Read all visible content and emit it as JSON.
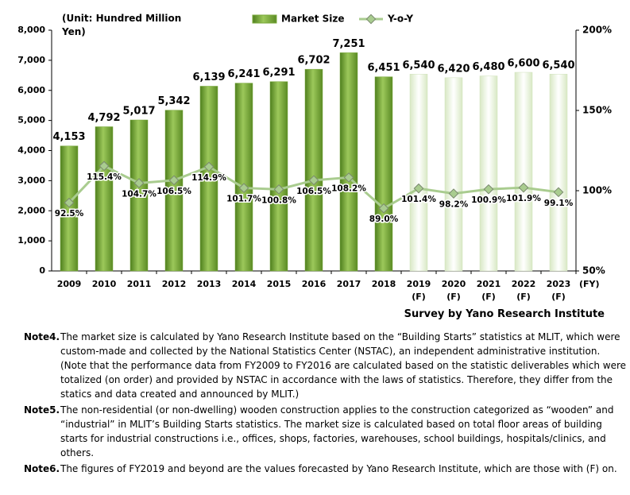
{
  "chart_data": {
    "type": "bar",
    "unit_label": "(Unit: Hundred Million Yen)",
    "x_unit": "(FY)",
    "source": "Survey by Yano Research Institute",
    "categories": [
      "2009",
      "2010",
      "2011",
      "2012",
      "2013",
      "2014",
      "2015",
      "2016",
      "2017",
      "2018",
      "2019 (F)",
      "2020 (F)",
      "2021 (F)",
      "2022 (F)",
      "2023 (F)"
    ],
    "forecast": [
      false,
      false,
      false,
      false,
      false,
      false,
      false,
      false,
      false,
      false,
      true,
      true,
      true,
      true,
      true
    ],
    "series": [
      {
        "name": "Market Size",
        "type": "bar",
        "color": "#78a83a",
        "values": [
          4153,
          4792,
          5017,
          5342,
          6139,
          6241,
          6291,
          6702,
          7251,
          6451,
          6540,
          6420,
          6480,
          6600,
          6540
        ],
        "value_labels": [
          "4,153",
          "4,792",
          "5,017",
          "5,342",
          "6,139",
          "6,241",
          "6,291",
          "6,702",
          "7,251",
          "6,451",
          "6,540",
          "6,420",
          "6,480",
          "6,600",
          "6,540"
        ]
      },
      {
        "name": "Y-o-Y",
        "type": "line",
        "axis": "y2",
        "color": "#a9cc8f",
        "values": [
          92.5,
          115.4,
          104.7,
          106.5,
          114.9,
          101.7,
          100.8,
          106.5,
          108.2,
          89.0,
          101.4,
          98.2,
          100.9,
          101.9,
          99.1
        ],
        "value_labels": [
          "92.5%",
          "115.4%",
          "104.7%",
          "106.5%",
          "114.9%",
          "101.7%",
          "100.8%",
          "106.5%",
          "108.2%",
          "89.0%",
          "101.4%",
          "98.2%",
          "100.9%",
          "101.9%",
          "99.1%"
        ]
      }
    ],
    "ylim": [
      0,
      8000
    ],
    "yticks": [
      0,
      {
        "value": 1000,
        "label": "1,000"
      },
      {
        "value": 2000,
        "label": "2,000"
      },
      {
        "value": 3000,
        "label": "3,000"
      },
      {
        "value": 4000,
        "label": "4,000"
      },
      {
        "value": 5000,
        "label": "5,000"
      },
      {
        "value": 6000,
        "label": "6,000"
      },
      {
        "value": 7000,
        "label": "7,000"
      },
      {
        "value": 8000,
        "label": "8,000"
      }
    ],
    "y2lim": [
      50,
      200
    ],
    "y2ticks": [
      {
        "value": 50,
        "label": "50%"
      },
      {
        "value": 100,
        "label": "100%"
      },
      {
        "value": 150,
        "label": "150%"
      },
      {
        "value": 200,
        "label": "200%"
      }
    ]
  },
  "notes": [
    {
      "label": "Note4.",
      "text": "The market size is calculated by Yano Research Institute based on the “Building Starts” statistics at MLIT, which were custom-made and collected by the National Statistics Center (NSTAC), an independent administrative institution. (Note that the performance data from FY2009 to FY2016 are calculated based on the statistic deliverables which were totalized (on order) and provided by NSTAC in accordance with the laws of statistics. Therefore, they differ from the statics and data created and announced by MLIT.)"
    },
    {
      "label": "Note5.",
      "text": "The non-residential (or non-dwelling) wooden construction applies to the construction categorized as “wooden” and “industrial” in MLIT’s Building Starts statistics.  The market size is calculated based on total floor areas of building starts for industrial constructions i.e., offices, shops, factories, warehouses, school buildings, hospitals/clinics, and others."
    },
    {
      "label": "Note6.",
      "text": "The figures of FY2019 and beyond are the values forecasted by Yano Research Institute, which are those with (F) on."
    }
  ]
}
